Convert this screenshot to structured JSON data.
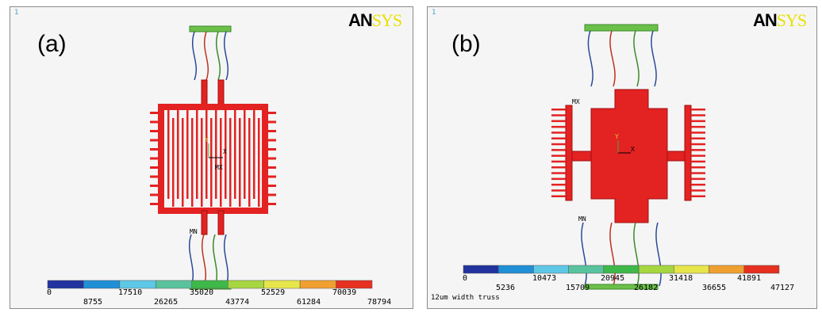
{
  "panel_a": {
    "label": "(a)",
    "window_number": "1",
    "logo_an": "AN",
    "logo_sys": "SYS",
    "marker_mn": "MN",
    "marker_mx": "MX",
    "axis_y": "Y",
    "axis_x": "X",
    "legend_colors": [
      "#2233a0",
      "#1f8fd6",
      "#5ec7e6",
      "#59c39d",
      "#3fb84a",
      "#a6d640",
      "#e6e64a",
      "#f0a030",
      "#e63020"
    ],
    "legend_ticks_top": [
      "0",
      "17510",
      "35020",
      "52529",
      "70039"
    ],
    "legend_ticks_bottom": [
      "8755",
      "26265",
      "43774",
      "61284",
      "78794"
    ]
  },
  "panel_b": {
    "label": "(b)",
    "window_number": "1",
    "logo_an": "AN",
    "logo_sys": "SYS",
    "marker_mn": "MN",
    "marker_mx": "MX",
    "axis_y": "Y",
    "axis_x": "X",
    "legend_colors": [
      "#2233a0",
      "#1f8fd6",
      "#5ec7e6",
      "#59c39d",
      "#3fb84a",
      "#a6d640",
      "#e6e64a",
      "#f0a030",
      "#e63020"
    ],
    "legend_ticks_top": [
      "0",
      "10473",
      "20945",
      "31418",
      "41891"
    ],
    "legend_ticks_bottom": [
      "5236",
      "15709",
      "26182",
      "36655",
      "47127"
    ],
    "caption": "12um width truss"
  },
  "colors": {
    "structure": "#e32222",
    "structure_edge": "#a01010",
    "anchor": "#6cc04a"
  }
}
